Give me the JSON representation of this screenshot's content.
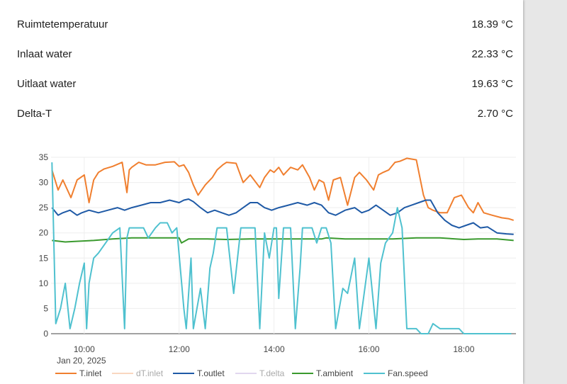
{
  "sensors": [
    {
      "label": "Ruimtetemperatuur",
      "value": "18.39 °C"
    },
    {
      "label": "Inlaat water",
      "value": "22.33 °C"
    },
    {
      "label": "Uitlaat water",
      "value": "19.63 °C"
    },
    {
      "label": "Delta-T",
      "value": "2.70 °C"
    }
  ],
  "chart_data": {
    "type": "line",
    "grid": true,
    "legend_position": "bottom",
    "xlim": [
      9.3,
      19.1
    ],
    "ylim": [
      0,
      35
    ],
    "x_ticks": [
      10,
      12,
      14,
      16,
      18
    ],
    "x_tick_labels": [
      "10:00",
      "12:00",
      "14:00",
      "16:00",
      "18:00"
    ],
    "x_subtitle": "Jan 20, 2025",
    "y_ticks": [
      0,
      5,
      10,
      15,
      20,
      25,
      30,
      35
    ],
    "series": [
      {
        "name": "T.inlet",
        "color": "#f07f2f",
        "visible": true,
        "x": [
          9.32,
          9.45,
          9.55,
          9.72,
          9.85,
          10.0,
          10.1,
          10.2,
          10.3,
          10.42,
          10.6,
          10.8,
          10.9,
          10.95,
          11.0,
          11.15,
          11.3,
          11.5,
          11.7,
          11.9,
          12.0,
          12.1,
          12.2,
          12.3,
          12.4,
          12.55,
          12.7,
          12.8,
          12.92,
          13.0,
          13.2,
          13.35,
          13.5,
          13.7,
          13.8,
          13.92,
          14.0,
          14.1,
          14.2,
          14.35,
          14.5,
          14.6,
          14.75,
          14.85,
          14.95,
          15.05,
          15.15,
          15.25,
          15.4,
          15.55,
          15.7,
          15.8,
          15.95,
          16.1,
          16.2,
          16.3,
          16.42,
          16.55,
          16.65,
          16.8,
          17.0,
          17.15,
          17.25,
          17.35,
          17.5,
          17.65,
          17.8,
          17.95,
          18.1,
          18.2,
          18.3,
          18.42,
          18.6,
          18.8,
          18.95,
          19.05
        ],
        "y": [
          32.5,
          28.5,
          30.5,
          27.0,
          30.5,
          31.5,
          26.0,
          30.5,
          32.0,
          32.7,
          33.2,
          34.0,
          28.0,
          32.5,
          33.0,
          34.0,
          33.5,
          33.5,
          34.0,
          34.1,
          33.2,
          33.5,
          32.0,
          29.5,
          27.5,
          29.5,
          31.0,
          32.5,
          33.5,
          34.0,
          33.8,
          30.0,
          31.5,
          29.0,
          31.0,
          32.5,
          32.0,
          33.0,
          31.5,
          33.0,
          32.5,
          33.5,
          31.0,
          28.5,
          30.5,
          30.0,
          26.5,
          30.5,
          31.0,
          25.5,
          31.0,
          32.0,
          30.5,
          28.5,
          31.5,
          32.0,
          32.5,
          34.0,
          34.2,
          34.8,
          34.5,
          27.5,
          25.0,
          24.5,
          24.0,
          24.0,
          27.0,
          27.5,
          25.0,
          24.0,
          26.0,
          24.0,
          23.5,
          23.0,
          22.8,
          22.5
        ]
      },
      {
        "name": "dT.inlet",
        "color": "#f4b183",
        "visible": false,
        "x": [],
        "y": []
      },
      {
        "name": "T.outlet",
        "color": "#1f5aa6",
        "visible": true,
        "x": [
          9.32,
          9.45,
          9.55,
          9.7,
          9.85,
          9.95,
          10.1,
          10.3,
          10.5,
          10.7,
          10.85,
          11.0,
          11.2,
          11.4,
          11.6,
          11.8,
          12.0,
          12.1,
          12.2,
          12.3,
          12.45,
          12.6,
          12.75,
          12.9,
          13.05,
          13.2,
          13.35,
          13.5,
          13.65,
          13.8,
          13.95,
          14.1,
          14.3,
          14.5,
          14.7,
          14.85,
          15.0,
          15.15,
          15.3,
          15.5,
          15.7,
          15.85,
          16.0,
          16.15,
          16.3,
          16.45,
          16.6,
          16.75,
          16.9,
          17.05,
          17.2,
          17.3,
          17.45,
          17.6,
          17.75,
          17.9,
          18.05,
          18.2,
          18.35,
          18.5,
          18.7,
          18.9,
          19.05
        ],
        "y": [
          25.0,
          23.5,
          24.0,
          24.5,
          23.5,
          24.0,
          24.5,
          24.0,
          24.5,
          25.0,
          24.5,
          25.0,
          25.5,
          26.0,
          26.0,
          26.5,
          26.0,
          26.5,
          26.7,
          26.2,
          25.0,
          24.0,
          24.5,
          24.0,
          23.5,
          24.0,
          25.0,
          26.0,
          26.0,
          25.0,
          24.5,
          25.0,
          25.5,
          26.0,
          25.5,
          26.0,
          25.5,
          24.0,
          23.5,
          24.5,
          25.0,
          24.0,
          24.5,
          25.5,
          24.5,
          23.5,
          24.0,
          25.0,
          25.5,
          26.0,
          26.5,
          26.5,
          24.0,
          22.5,
          21.5,
          21.0,
          21.5,
          22.0,
          21.0,
          21.2,
          20.0,
          19.8,
          19.7
        ]
      },
      {
        "name": "T.delta",
        "color": "#c5b0e0",
        "visible": false,
        "x": [],
        "y": []
      },
      {
        "name": "T.ambient",
        "color": "#3a9a2e",
        "visible": true,
        "x": [
          9.32,
          9.6,
          9.8,
          10.2,
          10.6,
          11.0,
          11.4,
          11.8,
          12.0,
          12.05,
          12.2,
          12.6,
          13.0,
          13.5,
          14.0,
          14.5,
          15.0,
          15.1,
          15.5,
          16.0,
          16.5,
          17.0,
          17.5,
          18.0,
          18.3,
          18.7,
          19.05
        ],
        "y": [
          18.5,
          18.2,
          18.3,
          18.5,
          18.8,
          19.0,
          19.0,
          19.0,
          19.0,
          18.0,
          18.8,
          18.8,
          18.7,
          18.8,
          18.8,
          18.8,
          18.8,
          19.0,
          18.8,
          18.8,
          18.8,
          19.0,
          19.0,
          18.7,
          18.8,
          18.8,
          18.5
        ]
      },
      {
        "name": "Fan.speed",
        "color": "#4fc1cf",
        "visible": true,
        "x": [
          9.32,
          9.4,
          9.5,
          9.6,
          9.7,
          9.8,
          9.9,
          10.0,
          10.05,
          10.1,
          10.2,
          10.3,
          10.45,
          10.6,
          10.75,
          10.85,
          10.9,
          10.95,
          11.1,
          11.25,
          11.35,
          11.5,
          11.6,
          11.75,
          11.85,
          11.95,
          12.1,
          12.15,
          12.25,
          12.3,
          12.45,
          12.55,
          12.65,
          12.72,
          12.8,
          12.9,
          13.0,
          13.15,
          13.3,
          13.45,
          13.6,
          13.7,
          13.8,
          13.9,
          14.0,
          14.05,
          14.1,
          14.2,
          14.35,
          14.45,
          14.55,
          14.6,
          14.7,
          14.8,
          14.9,
          15.0,
          15.1,
          15.2,
          15.3,
          15.45,
          15.55,
          15.7,
          15.8,
          15.9,
          16.0,
          16.15,
          16.25,
          16.35,
          16.5,
          16.6,
          16.7,
          16.8,
          16.9,
          17.0,
          17.1,
          17.2,
          17.25,
          17.35,
          17.5,
          17.6,
          17.9,
          18.0,
          18.1,
          18.2,
          18.4,
          18.6,
          18.8,
          19.0
        ],
        "y": [
          34,
          2,
          5,
          10,
          1,
          5,
          10,
          14,
          1,
          10,
          15,
          16,
          18,
          20,
          21,
          1,
          19,
          21,
          21,
          21,
          19,
          21,
          22,
          22,
          20,
          21,
          5,
          1,
          15,
          1,
          9,
          1,
          13,
          16,
          21,
          21,
          21,
          8,
          21,
          21,
          21,
          1,
          20,
          15,
          21,
          21,
          7,
          21,
          21,
          1,
          13,
          21,
          21,
          21,
          18,
          21,
          21,
          18,
          1,
          9,
          8,
          15,
          1,
          8,
          15,
          1,
          14,
          18,
          20,
          25,
          21,
          1,
          1,
          1,
          0,
          0,
          0,
          2,
          1,
          1,
          1,
          0,
          0,
          0,
          0,
          0,
          0,
          0
        ]
      }
    ]
  }
}
